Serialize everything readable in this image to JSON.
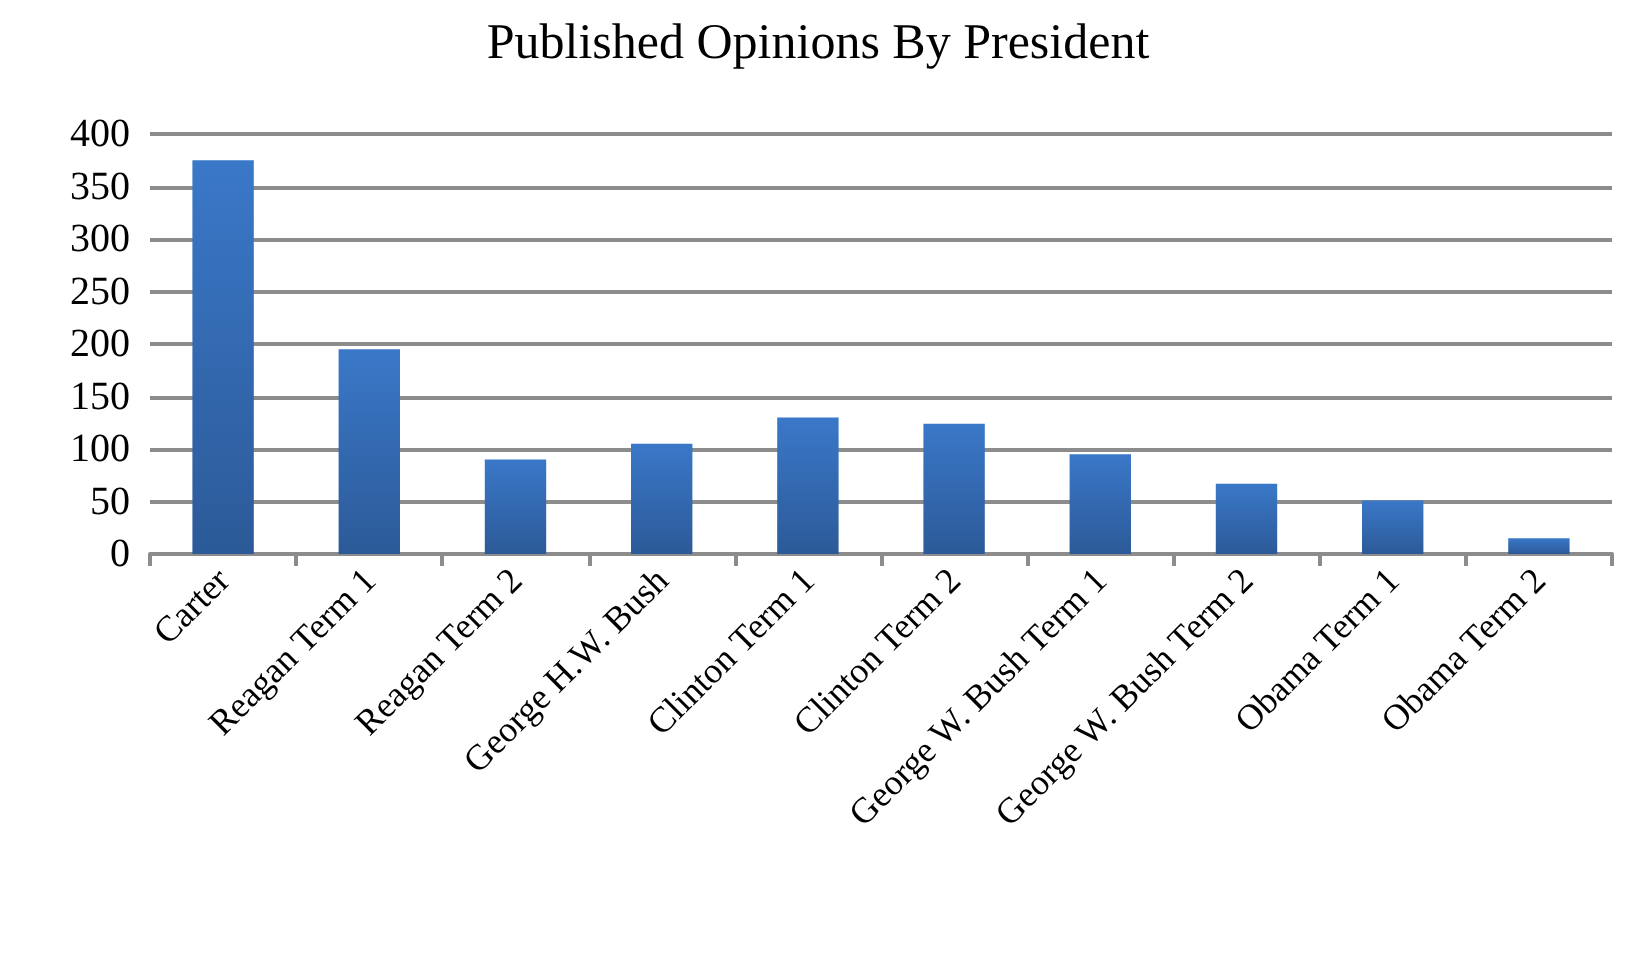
{
  "chart_data": {
    "type": "bar",
    "title": "Published Opinions By President",
    "categories": [
      "Carter",
      "Reagan Term 1",
      "Reagan Term 2",
      "George H.W. Bush",
      "Clinton Term 1",
      "Clinton Term 2",
      "George W. Bush Term 1",
      "George W. Bush Term 2",
      "Obama Term 1",
      "Obama Term 2"
    ],
    "values": [
      375,
      195,
      90,
      105,
      130,
      124,
      95,
      67,
      51,
      15
    ],
    "color": "#3a78c8",
    "ylim": [
      0,
      400
    ],
    "yticks": [
      0,
      50,
      100,
      150,
      200,
      250,
      300,
      350,
      400
    ],
    "grid": "y"
  }
}
